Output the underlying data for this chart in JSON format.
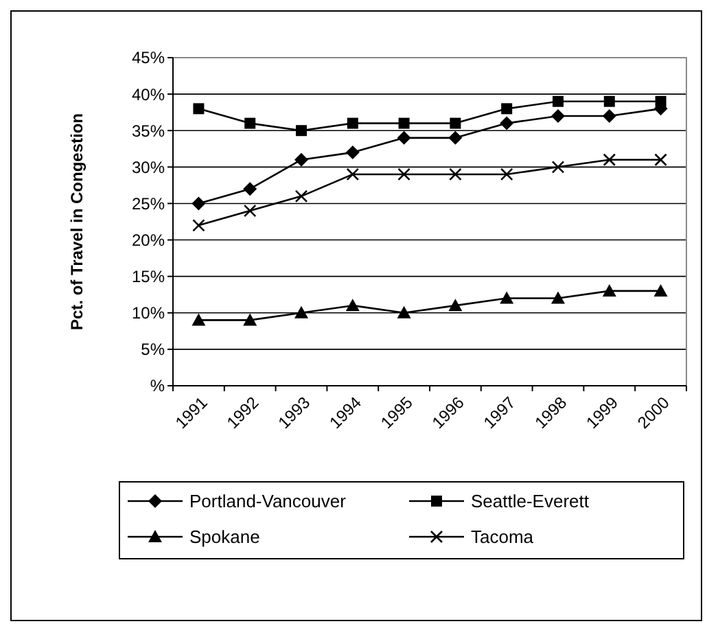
{
  "chart_data": {
    "type": "line",
    "ylabel": "Pct. of Travel in Congestion",
    "categories": [
      "1991",
      "1992",
      "1993",
      "1994",
      "1995",
      "1996",
      "1997",
      "1998",
      "1999",
      "2000"
    ],
    "series": [
      {
        "name": "Portland-Vancouver",
        "color": "#000000",
        "marker": "diamond",
        "values": [
          25,
          27,
          31,
          32,
          34,
          34,
          36,
          37,
          37,
          38
        ]
      },
      {
        "name": "Seattle-Everett",
        "color": "#000000",
        "marker": "square",
        "values": [
          38,
          36,
          35,
          36,
          36,
          36,
          38,
          39,
          39,
          39
        ]
      },
      {
        "name": "Spokane",
        "color": "#000000",
        "marker": "triangle",
        "values": [
          9,
          9,
          10,
          11,
          10,
          11,
          12,
          12,
          13,
          13
        ]
      },
      {
        "name": "Tacoma",
        "color": "#000000",
        "marker": "cross",
        "values": [
          22,
          24,
          26,
          29,
          29,
          29,
          29,
          30,
          31,
          31
        ]
      }
    ],
    "ylim": [
      0,
      45
    ],
    "yticks": [
      {
        "value": 0,
        "label": "%"
      },
      {
        "value": 5,
        "label": "5%"
      },
      {
        "value": 10,
        "label": "10%"
      },
      {
        "value": 15,
        "label": "15%"
      },
      {
        "value": 20,
        "label": "20%"
      },
      {
        "value": 25,
        "label": "25%"
      },
      {
        "value": 30,
        "label": "30%"
      },
      {
        "value": 35,
        "label": "35%"
      },
      {
        "value": 40,
        "label": "40%"
      },
      {
        "value": 45,
        "label": "45%"
      }
    ],
    "grid": "y",
    "legend": "bottom",
    "line_style": "solid"
  }
}
